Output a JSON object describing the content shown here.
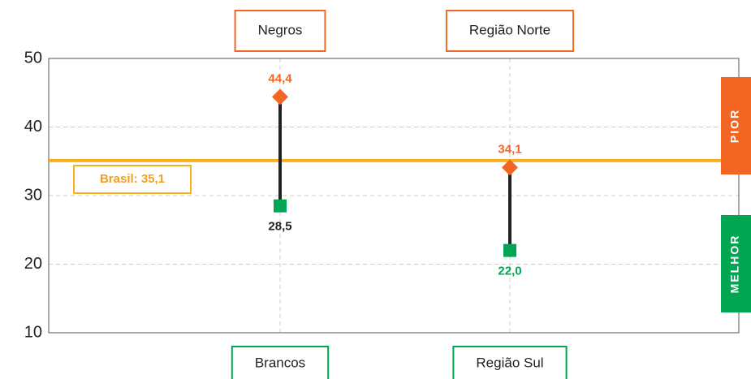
{
  "chart_data": {
    "type": "dumbbell",
    "ylim": [
      10,
      50
    ],
    "yticks": [
      10,
      20,
      30,
      40,
      50
    ],
    "grid": true,
    "series": [
      {
        "color": "#f26522",
        "categories": [
          "Negros",
          "Região Norte"
        ],
        "values": [
          44.4,
          34.1
        ],
        "value_labels": [
          "44,4",
          "34,1"
        ],
        "label_colors": [
          "#f26522",
          "#f26522"
        ],
        "marker": "diamond"
      },
      {
        "color": "#00a651",
        "categories": [
          "Brancos",
          "Região Sul"
        ],
        "values": [
          28.5,
          22.0
        ],
        "value_labels": [
          "28,5",
          "22,0"
        ],
        "label_colors": [
          "#222222",
          "#00a651"
        ],
        "marker": "square"
      }
    ],
    "reference_line": {
      "value": 35.1,
      "label": "Brasil: 35,1",
      "color": "#f5b21a"
    },
    "side_labels": [
      {
        "text": "PIOR",
        "color": "#f26522"
      },
      {
        "text": "MELHOR",
        "color": "#00a651"
      }
    ]
  }
}
